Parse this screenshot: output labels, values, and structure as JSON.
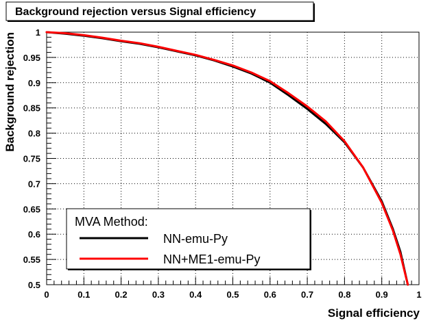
{
  "chart_data": {
    "type": "line",
    "title": "Background rejection versus Signal efficiency",
    "xlabel": "Signal efficiency",
    "ylabel": "Background rejection",
    "xlim": [
      0,
      1
    ],
    "ylim": [
      0.5,
      1
    ],
    "x_ticks": [
      "0",
      "0.1",
      "0.2",
      "0.3",
      "0.4",
      "0.5",
      "0.6",
      "0.7",
      "0.8",
      "0.9",
      "1"
    ],
    "y_ticks": [
      "0.5",
      "0.55",
      "0.6",
      "0.65",
      "0.7",
      "0.75",
      "0.8",
      "0.85",
      "0.9",
      "0.95",
      "1"
    ],
    "grid": true,
    "legend": {
      "title": "MVA Method:",
      "placement": "bottom-left"
    },
    "series": [
      {
        "name": "NN-emu-Py",
        "color": "#000000",
        "x": [
          0,
          0.05,
          0.1,
          0.15,
          0.2,
          0.25,
          0.3,
          0.35,
          0.4,
          0.45,
          0.5,
          0.55,
          0.6,
          0.65,
          0.7,
          0.75,
          0.8,
          0.85,
          0.9,
          0.93,
          0.95,
          0.97
        ],
        "y": [
          1.0,
          0.997,
          0.993,
          0.988,
          0.982,
          0.977,
          0.97,
          0.962,
          0.954,
          0.944,
          0.932,
          0.918,
          0.9,
          0.875,
          0.848,
          0.818,
          0.782,
          0.732,
          0.665,
          0.61,
          0.565,
          0.5
        ]
      },
      {
        "name": "NN+ME1-emu-Py",
        "color": "#ff0000",
        "x": [
          0,
          0.05,
          0.1,
          0.15,
          0.2,
          0.25,
          0.3,
          0.35,
          0.4,
          0.45,
          0.5,
          0.55,
          0.6,
          0.65,
          0.7,
          0.75,
          0.8,
          0.85,
          0.9,
          0.93,
          0.95,
          0.97
        ],
        "y": [
          1.0,
          0.998,
          0.994,
          0.989,
          0.983,
          0.978,
          0.971,
          0.963,
          0.955,
          0.945,
          0.934,
          0.92,
          0.903,
          0.879,
          0.853,
          0.823,
          0.784,
          0.732,
          0.662,
          0.607,
          0.56,
          0.5
        ]
      }
    ]
  }
}
